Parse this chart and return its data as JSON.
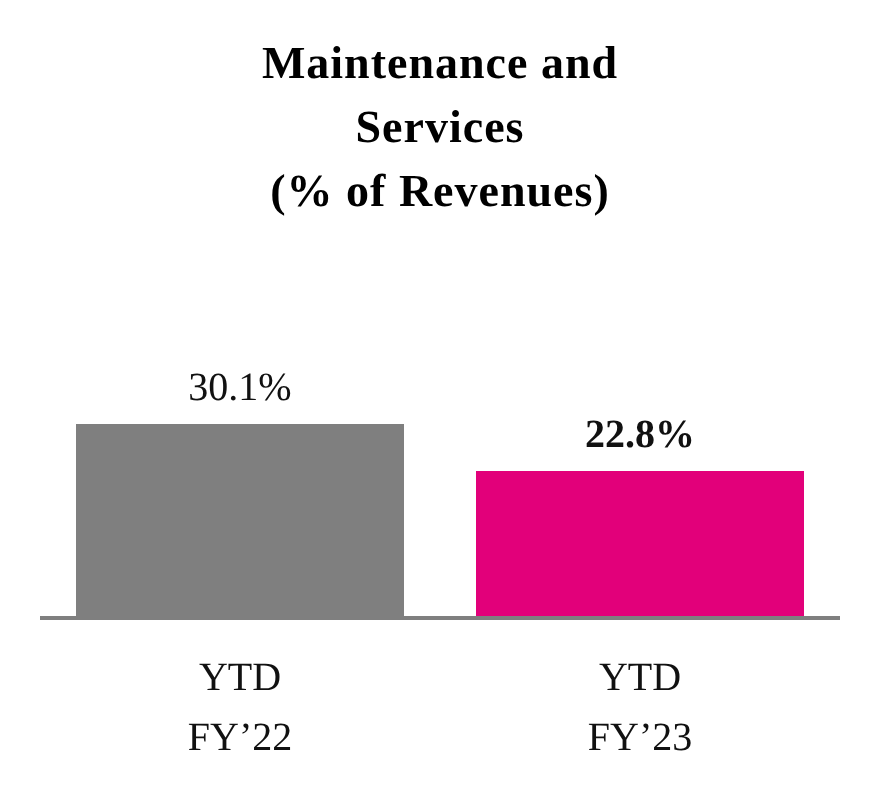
{
  "chart_data": {
    "type": "bar",
    "title": "Maintenance and Services",
    "subtitle": "(% of Revenues)",
    "categories": [
      "YTD FY’22",
      "YTD FY’23"
    ],
    "values": [
      30.1,
      22.8
    ],
    "colors": [
      "#7f7f7f",
      "#e2007a"
    ],
    "value_labels": [
      "30.1%",
      "22.8%"
    ],
    "tick_labels": "x"
  }
}
